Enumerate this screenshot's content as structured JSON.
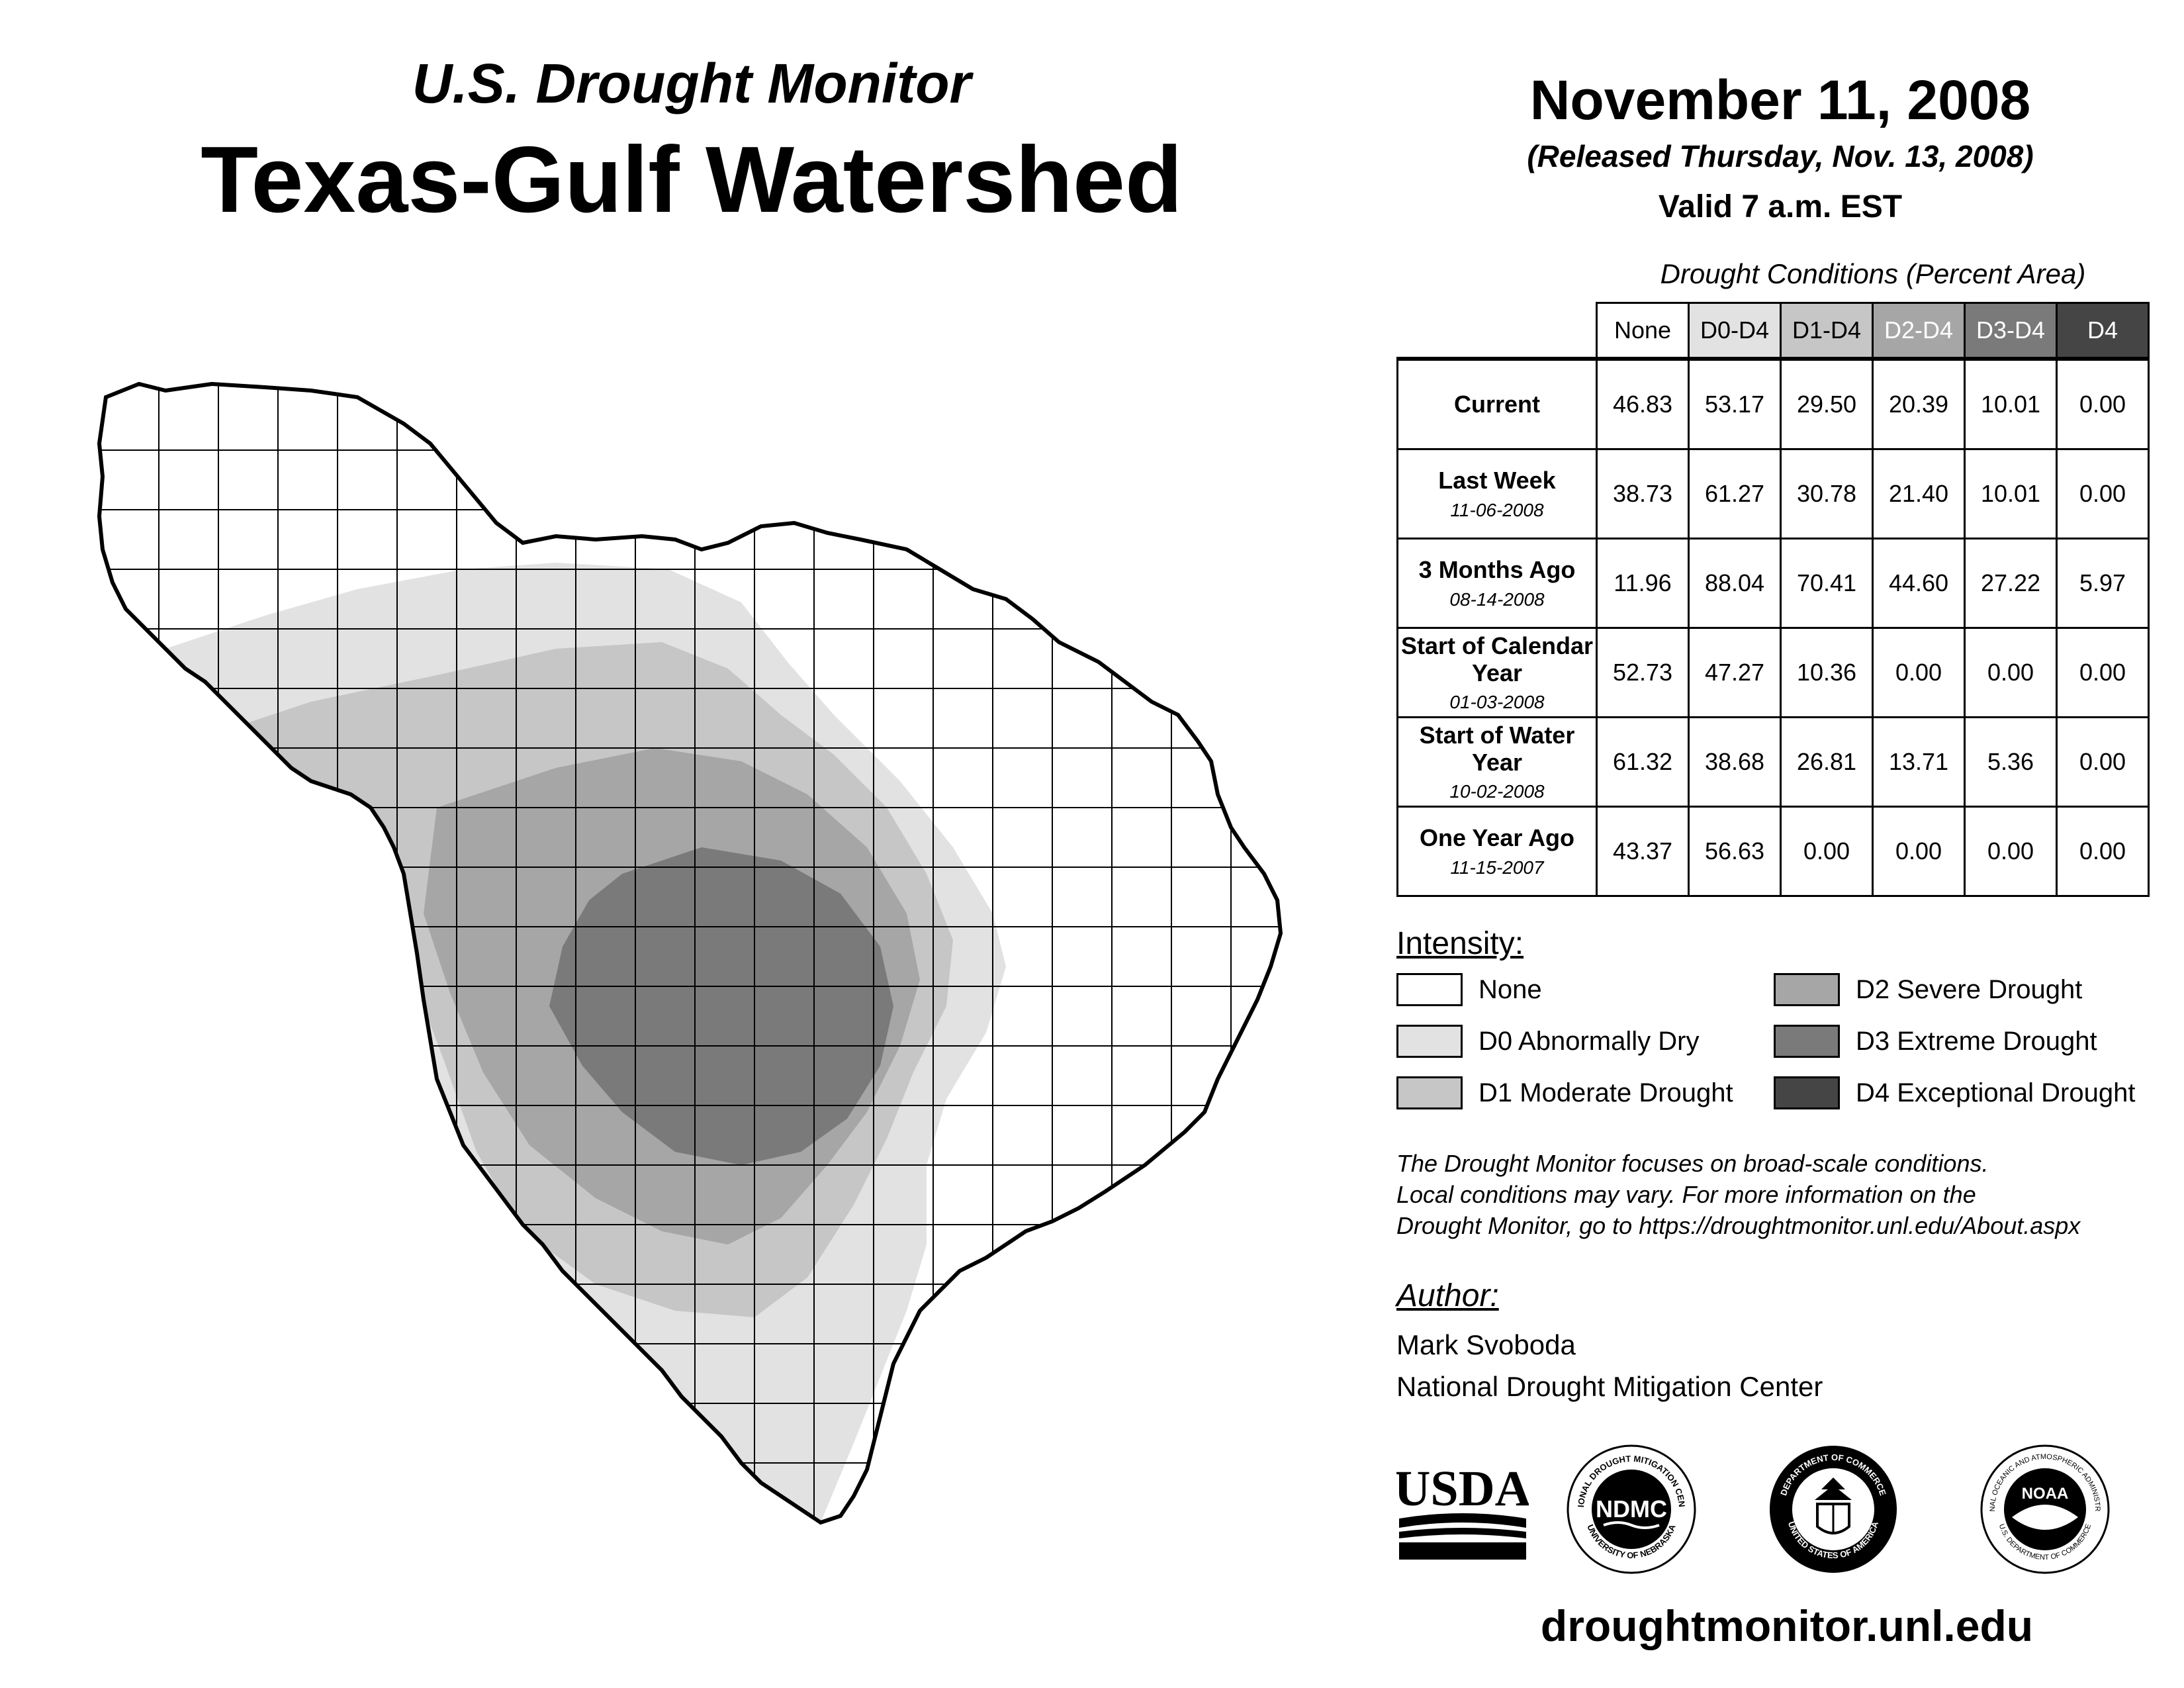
{
  "header": {
    "subtitle": "U.S. Drought Monitor",
    "title": "Texas-Gulf Watershed",
    "date": "November 11, 2008",
    "released": "(Released Thursday, Nov. 13, 2008)",
    "valid": "Valid 7 a.m. EST"
  },
  "table": {
    "caption": "Drought Conditions (Percent Area)",
    "columns": [
      "None",
      "D0-D4",
      "D1-D4",
      "D2-D4",
      "D3-D4",
      "D4"
    ],
    "rows": [
      {
        "label": "Current",
        "date": "",
        "values": [
          "46.83",
          "53.17",
          "29.50",
          "20.39",
          "10.01",
          "0.00"
        ]
      },
      {
        "label": "Last Week",
        "date": "11-06-2008",
        "values": [
          "38.73",
          "61.27",
          "30.78",
          "21.40",
          "10.01",
          "0.00"
        ]
      },
      {
        "label": "3 Months Ago",
        "date": "08-14-2008",
        "values": [
          "11.96",
          "88.04",
          "70.41",
          "44.60",
          "27.22",
          "5.97"
        ]
      },
      {
        "label": "Start of Calendar Year",
        "date": "01-03-2008",
        "values": [
          "52.73",
          "47.27",
          "10.36",
          "0.00",
          "0.00",
          "0.00"
        ]
      },
      {
        "label": "Start of Water Year",
        "date": "10-02-2008",
        "values": [
          "61.32",
          "38.68",
          "26.81",
          "13.71",
          "5.36",
          "0.00"
        ]
      },
      {
        "label": "One Year Ago",
        "date": "11-15-2007",
        "values": [
          "43.37",
          "56.63",
          "0.00",
          "0.00",
          "0.00",
          "0.00"
        ]
      }
    ]
  },
  "legend": {
    "title": "Intensity:",
    "items": [
      {
        "label": "None",
        "color": "#ffffff"
      },
      {
        "label": "D0 Abnormally Dry",
        "color": "#e2e2e2"
      },
      {
        "label": "D1 Moderate Drought",
        "color": "#c6c6c6"
      },
      {
        "label": "D2 Severe Drought",
        "color": "#a6a6a6"
      },
      {
        "label": "D3 Extreme Drought",
        "color": "#7a7a7a"
      },
      {
        "label": "D4 Exceptional Drought",
        "color": "#454545"
      }
    ]
  },
  "note": {
    "line1": "The Drought Monitor focuses on broad-scale conditions.",
    "line2": "Local conditions may vary. For more information on the",
    "line3": "Drought Monitor, go to https://droughtmonitor.unl.edu/About.aspx"
  },
  "author": {
    "title": "Author:",
    "name": "Mark Svoboda",
    "org": "National Drought Mitigation Center"
  },
  "logos": {
    "usda": "USDA",
    "ndmc": "NDMC",
    "ndmc_ring_top": "NATIONAL DROUGHT MITIGATION CENTER",
    "ndmc_ring_bottom": "UNIVERSITY OF NEBRASKA",
    "commerce_ring_top": "DEPARTMENT OF COMMERCE",
    "commerce_ring_bottom": "UNITED STATES OF AMERICA",
    "noaa": "NOAA",
    "noaa_ring_top": "NATIONAL OCEANIC AND ATMOSPHERIC ADMINISTRATION",
    "noaa_ring_bottom": "U.S. DEPARTMENT OF COMMERCE"
  },
  "url": "droughtmonitor.unl.edu"
}
